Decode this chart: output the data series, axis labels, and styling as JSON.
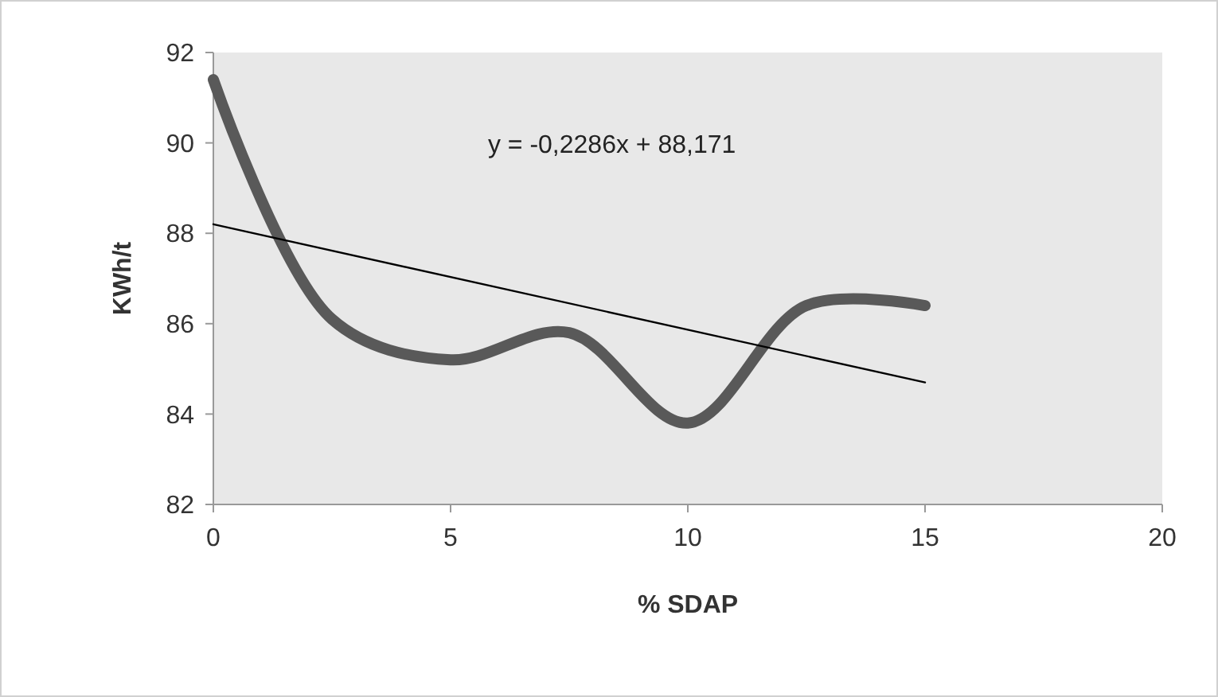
{
  "chart_data": {
    "type": "line",
    "xlabel": "% SDAP",
    "ylabel": "KWh/t",
    "xlim": [
      0,
      20
    ],
    "xticks": [
      0,
      5,
      10,
      15,
      20
    ],
    "ylim": [
      82,
      92
    ],
    "yticks": [
      82,
      84,
      86,
      88,
      90,
      92
    ],
    "annotations": [
      "y = -0,2286x + 88,171"
    ],
    "series": [
      {
        "color": "#595959",
        "x": [
          0,
          2.5,
          5,
          7.5,
          10,
          12.5,
          15
        ],
        "values": [
          91.4,
          86.1,
          85.2,
          85.8,
          83.8,
          86.4,
          86.4
        ]
      },
      {
        "color": "#000000",
        "x": [
          0,
          15
        ],
        "values": [
          88.2,
          84.7
        ]
      }
    ]
  }
}
